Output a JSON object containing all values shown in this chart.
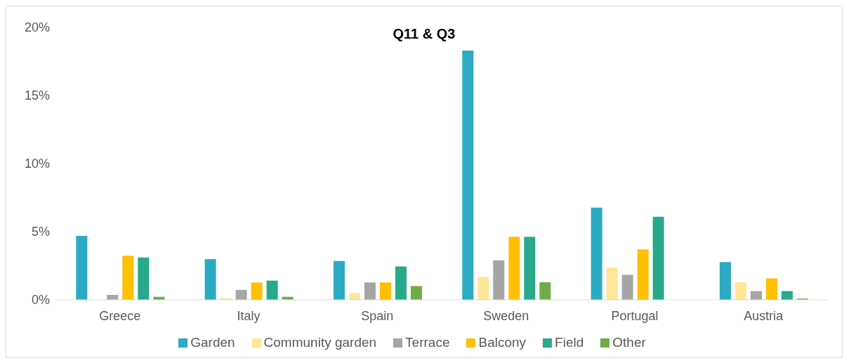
{
  "chart_data": {
    "type": "bar",
    "title": "Q11 & Q3",
    "categories": [
      "Greece",
      "Italy",
      "Spain",
      "Sweden",
      "Portugal",
      "Austria"
    ],
    "series": [
      {
        "name": "Garden",
        "color": "#2aabc2",
        "values": [
          4.69,
          2.99,
          2.85,
          18.3,
          6.76,
          2.77
        ]
      },
      {
        "name": "Community garden",
        "color": "#ffe699",
        "values": [
          0,
          0.1,
          0.5,
          1.69,
          2.37,
          1.29
        ]
      },
      {
        "name": "Terrace",
        "color": "#a5a5a5",
        "values": [
          0.36,
          0.73,
          1.27,
          2.9,
          1.84,
          0.64
        ]
      },
      {
        "name": "Balcony",
        "color": "#ffc000",
        "values": [
          3.24,
          1.27,
          1.27,
          4.63,
          3.7,
          1.57
        ]
      },
      {
        "name": "Field",
        "color": "#27a98a",
        "values": [
          3.11,
          1.41,
          2.45,
          4.63,
          6.1,
          0.64
        ]
      },
      {
        "name": "Other",
        "color": "#70ad47",
        "values": [
          0.22,
          0.22,
          1.01,
          1.29,
          0,
          0.09
        ]
      }
    ],
    "ylim": [
      0,
      20
    ],
    "yticks": [
      {
        "value": 0,
        "label": "0%"
      },
      {
        "value": 5,
        "label": "5%"
      },
      {
        "value": 10,
        "label": "10%"
      },
      {
        "value": 15,
        "label": "15%"
      },
      {
        "value": 20,
        "label": "20%"
      }
    ],
    "grid": false,
    "legend": "bottom"
  }
}
